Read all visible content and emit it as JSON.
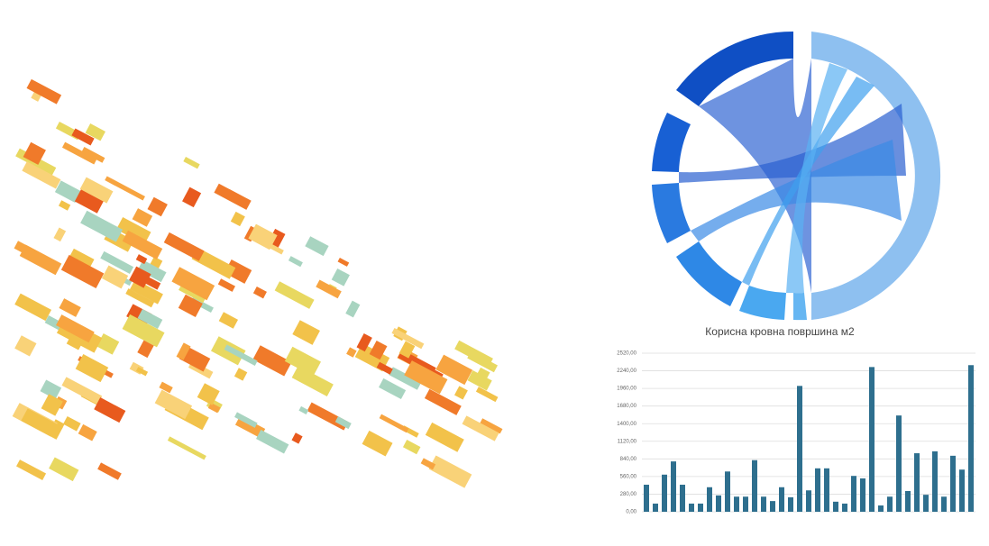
{
  "chart_data": {
    "type": "bar",
    "title": "Корисна кровна површина м2",
    "categories": [
      null,
      null,
      null,
      null,
      null,
      null,
      null,
      null,
      null,
      null,
      null,
      null,
      null,
      null,
      null,
      null,
      null,
      null,
      null,
      null,
      null,
      null,
      null,
      null,
      null,
      null,
      null,
      null,
      null,
      null,
      null,
      null,
      null,
      null,
      null,
      null,
      null
    ],
    "values": [
      430,
      130,
      590,
      800,
      430,
      130,
      130,
      390,
      260,
      640,
      240,
      240,
      820,
      240,
      170,
      390,
      230,
      2000,
      340,
      690,
      690,
      160,
      130,
      570,
      530,
      2300,
      100,
      240,
      1530,
      330,
      930,
      270,
      960,
      240,
      890,
      670,
      2330
    ],
    "color": "#2e6f8e",
    "ylim": [
      0,
      2520
    ],
    "yticks": [
      {
        "value": 0,
        "label": "0,00"
      },
      {
        "value": 280,
        "label": "280,00"
      },
      {
        "value": 560,
        "label": "560,00"
      },
      {
        "value": 840,
        "label": "840,00"
      },
      {
        "value": 1120,
        "label": "1120,00"
      },
      {
        "value": 1400,
        "label": "1400,00"
      },
      {
        "value": 1680,
        "label": "1680,00"
      },
      {
        "value": 1960,
        "label": "1960,00"
      },
      {
        "value": 2240,
        "label": "2240,00"
      },
      {
        "value": 2520,
        "label": "2520,00"
      }
    ],
    "grid": true
  }
}
